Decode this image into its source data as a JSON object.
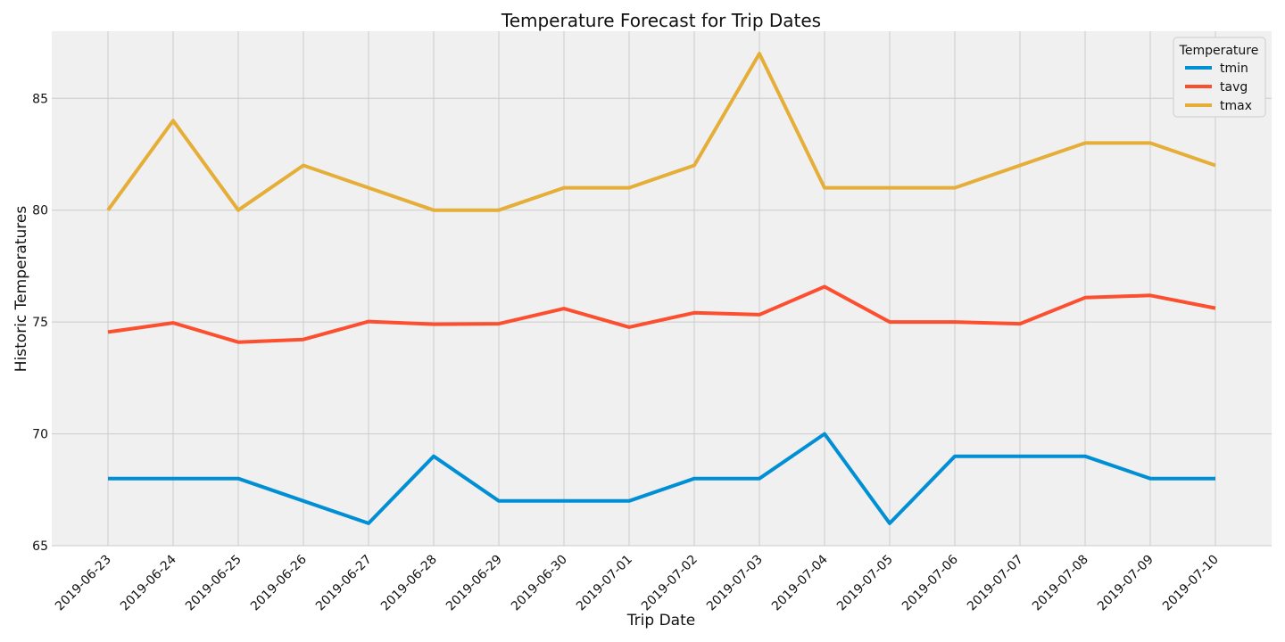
{
  "chart_data": {
    "type": "line",
    "title": "Temperature Forecast for Trip Dates",
    "xlabel": "Trip Date",
    "ylabel": "Historic Temperatures",
    "categories": [
      "2019-06-23",
      "2019-06-24",
      "2019-06-25",
      "2019-06-26",
      "2019-06-27",
      "2019-06-28",
      "2019-06-29",
      "2019-06-30",
      "2019-07-01",
      "2019-07-02",
      "2019-07-03",
      "2019-07-04",
      "2019-07-05",
      "2019-07-06",
      "2019-07-07",
      "2019-07-08",
      "2019-07-09",
      "2019-07-10"
    ],
    "ylim": [
      65,
      88
    ],
    "yticks": [
      "65",
      "70",
      "75",
      "80",
      "85"
    ],
    "grid": true,
    "legend": {
      "title": "Temperature",
      "placement": "top-right"
    },
    "series": [
      {
        "name": "tmin",
        "color": "#008fd5",
        "values": [
          68,
          68,
          68,
          67,
          66,
          69,
          67,
          67,
          67,
          68,
          68,
          70,
          66,
          69,
          69,
          69,
          68,
          68
        ]
      },
      {
        "name": "tavg",
        "color": "#fc4f30",
        "values": [
          74.55,
          74.96,
          74.1,
          74.22,
          75.02,
          74.9,
          74.92,
          75.6,
          74.77,
          75.41,
          75.33,
          76.58,
          75.0,
          75.0,
          74.92,
          76.09,
          76.19,
          75.62
        ]
      },
      {
        "name": "tmax",
        "color": "#e5ae38",
        "values": [
          80,
          84,
          80,
          82,
          81,
          80,
          80,
          81,
          81,
          82,
          87,
          81,
          81,
          81,
          82,
          83,
          83,
          82
        ]
      }
    ]
  }
}
